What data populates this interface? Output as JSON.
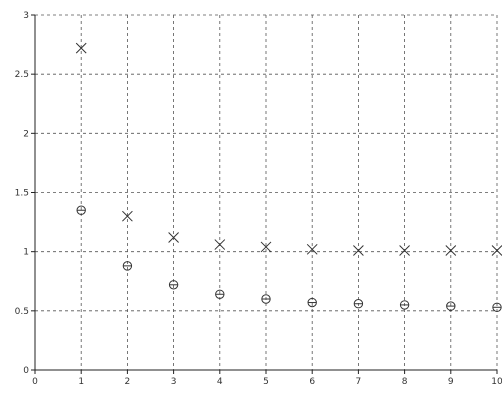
{
  "chart_data": {
    "type": "scatter",
    "x": [
      1,
      2,
      3,
      4,
      5,
      6,
      7,
      8,
      9,
      10
    ],
    "series": [
      {
        "marker": "x",
        "values": [
          2.72,
          1.3,
          1.12,
          1.06,
          1.04,
          1.02,
          1.01,
          1.01,
          1.01,
          1.01
        ]
      },
      {
        "marker": "circle",
        "values": [
          1.35,
          0.88,
          0.72,
          0.64,
          0.6,
          0.57,
          0.56,
          0.55,
          0.54,
          0.53
        ]
      }
    ],
    "xlim": [
      0,
      10
    ],
    "ylim": [
      0,
      3
    ],
    "x_ticks": [
      "0",
      "1",
      "2",
      "3",
      "4",
      "5",
      "6",
      "7",
      "8",
      "9",
      "10"
    ],
    "y_ticks": [
      "0",
      "0.5",
      "1",
      "1.5",
      "2",
      "2.5",
      "3"
    ],
    "grid": true,
    "title": "",
    "xlabel": "",
    "ylabel": "",
    "marker_color": "#333333",
    "grid_color": "#555555"
  }
}
